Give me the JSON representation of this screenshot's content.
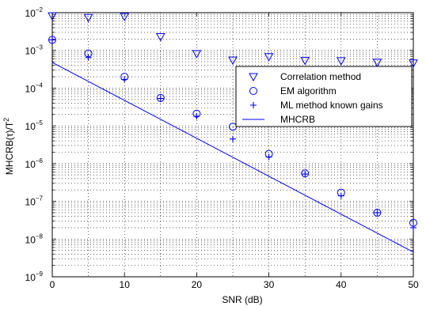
{
  "chart_data": {
    "type": "scatter",
    "title": "",
    "xlabel": "SNR (dB)",
    "ylabel_main": "MHCRB(τ)/T",
    "ylabel_sup": "2",
    "xlim": [
      0,
      50
    ],
    "ylim": [
      1e-09,
      0.01
    ],
    "yscale": "log",
    "grid": true,
    "legend_position": "upper-right",
    "x_ticks": [
      0,
      10,
      20,
      30,
      40,
      50
    ],
    "y_ticks": [
      {
        "value": 1e-09,
        "base": "10",
        "exp": "−9"
      },
      {
        "value": 1e-08,
        "base": "10",
        "exp": "−8"
      },
      {
        "value": 1e-07,
        "base": "10",
        "exp": "−7"
      },
      {
        "value": 1e-06,
        "base": "10",
        "exp": "−6"
      },
      {
        "value": 1e-05,
        "base": "10",
        "exp": "−5"
      },
      {
        "value": 0.0001,
        "base": "10",
        "exp": "−4"
      },
      {
        "value": 0.001,
        "base": "10",
        "exp": "−3"
      },
      {
        "value": 0.01,
        "base": "10",
        "exp": "−2"
      }
    ],
    "series": [
      {
        "name": "Correlation method",
        "marker": "triangle-down",
        "color": "#0000ff",
        "x": [
          0,
          5,
          10,
          15,
          20,
          25,
          30,
          35,
          40,
          45,
          50
        ],
        "y": [
          0.0082,
          0.0074,
          0.0079,
          0.0023,
          0.00082,
          0.00055,
          0.00068,
          0.00054,
          0.00053,
          0.00048,
          0.00046
        ]
      },
      {
        "name": "EM algorithm",
        "marker": "circle",
        "color": "#0000ff",
        "x": [
          0,
          5,
          10,
          15,
          20,
          25,
          30,
          35,
          40,
          45,
          50
        ],
        "y": [
          0.0019,
          0.00083,
          0.0002,
          5.5e-05,
          2.1e-05,
          9.5e-06,
          1.8e-06,
          5.5e-07,
          1.7e-07,
          5e-08,
          2.7e-08
        ]
      },
      {
        "name": "ML method known gains",
        "marker": "plus",
        "color": "#0000ff",
        "x": [
          0,
          5,
          10,
          15,
          20,
          25,
          30,
          35,
          40,
          45,
          50
        ],
        "y": [
          0.0019,
          0.00065,
          0.00017,
          5.3e-05,
          1.8e-05,
          4.5e-06,
          1.5e-06,
          5.3e-07,
          1.4e-07,
          5e-08,
          2e-08
        ]
      },
      {
        "name": "MHCRB",
        "marker": "line",
        "color": "#0000ff",
        "x": [
          0,
          50
        ],
        "y": [
          0.00048,
          4.5e-09
        ]
      }
    ]
  }
}
